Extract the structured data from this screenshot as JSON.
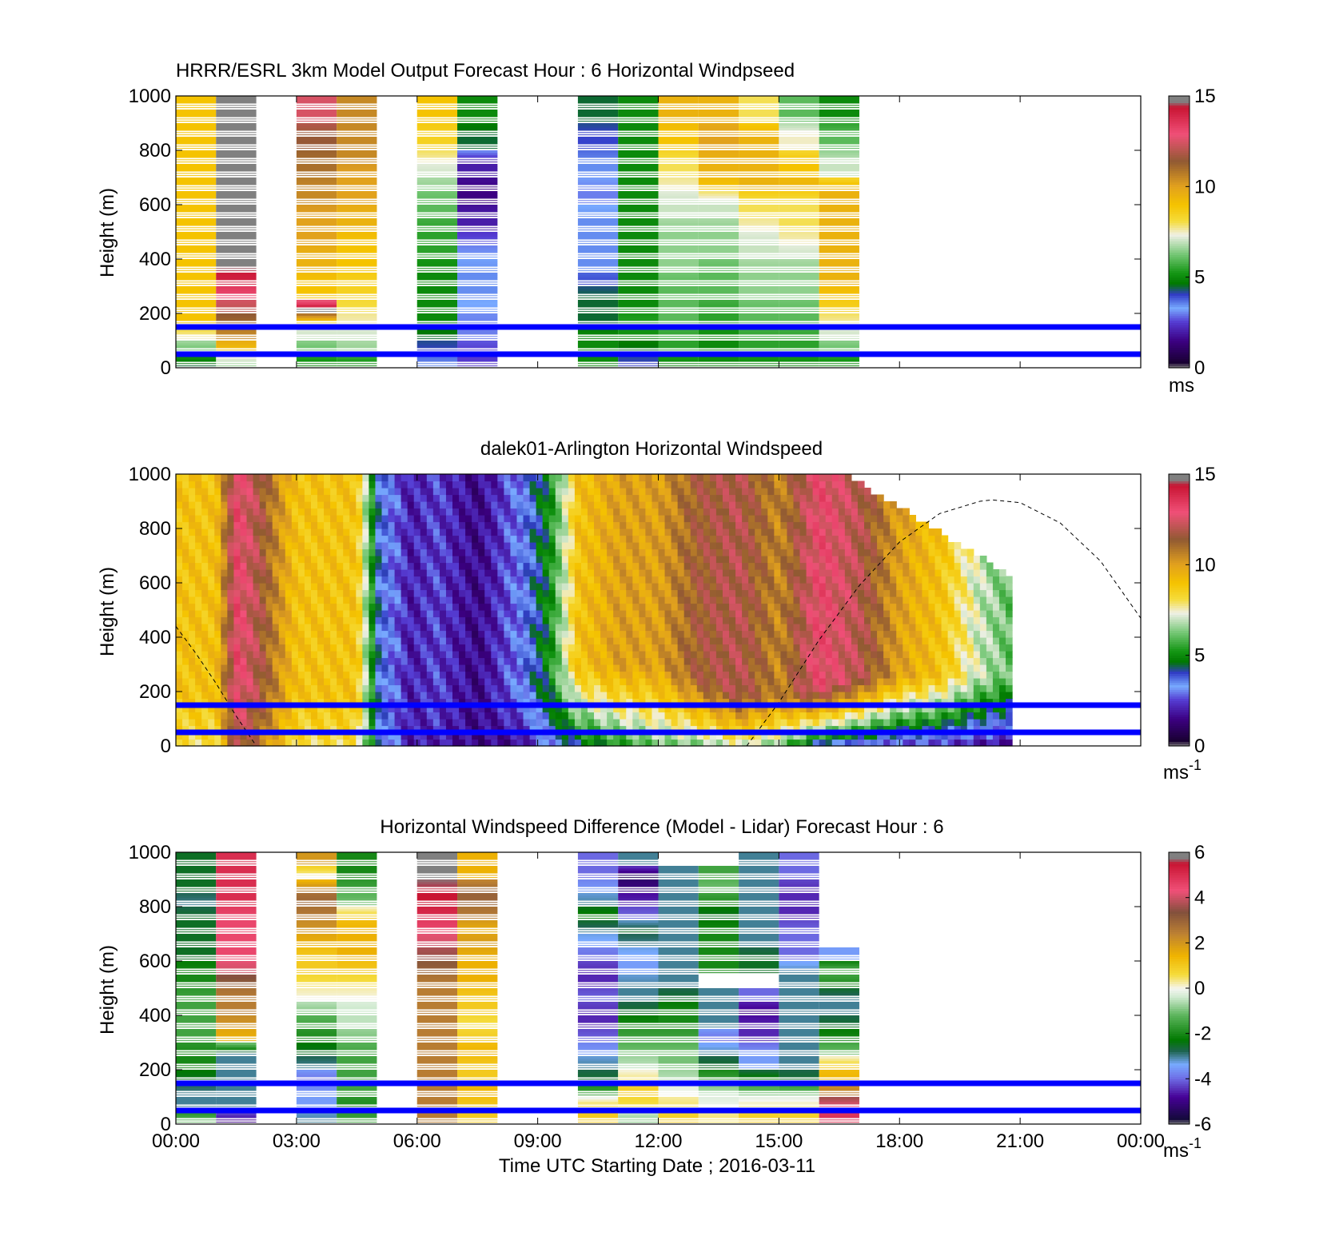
{
  "figure": {
    "xlabel": "Time UTC  Starting Date ; 2016-03-11",
    "x_ticks": [
      "00:00",
      "03:00",
      "06:00",
      "09:00",
      "12:00",
      "15:00",
      "18:00",
      "21:00",
      "00:00"
    ],
    "blue_line_heights_m": [
      50,
      150
    ],
    "colors": {
      "reference_lines": "#0000ff",
      "missing": "#ffffff",
      "axes": "#000000"
    }
  },
  "chart_data": [
    {
      "type": "heatmap",
      "title": "HRRR/ESRL 3km Model Output   Forecast Hour : 6 Horizontal Windpseed",
      "ylabel": "Height (m)",
      "xlim_hours": [
        0,
        24
      ],
      "ylim": [
        0,
        1000
      ],
      "y_ticks": [
        "0",
        "200",
        "400",
        "600",
        "800",
        "1000"
      ],
      "colorbar": {
        "min": 0,
        "max": 15,
        "ticks": [
          "0",
          "5",
          "10",
          "15"
        ],
        "unit": "ms"
      },
      "heights_m": [
        50,
        100,
        150,
        200,
        250,
        300,
        350,
        400,
        450,
        500,
        550,
        600,
        650,
        700,
        750,
        800,
        850,
        900,
        950,
        1000
      ],
      "columns": [
        {
          "start": 0,
          "end": 1,
          "values": [
            4.5,
            6.0,
            7.5,
            9.0,
            9.0,
            9.0,
            9.0,
            9.0,
            9.0,
            9.0,
            9.0,
            9.0,
            9.0,
            9.0,
            9.0,
            9.0,
            9.0,
            9.0,
            9.0,
            9.0
          ]
        },
        {
          "start": 1,
          "end": 2,
          "values": [
            6.5,
            9.0,
            10.5,
            11.0,
            12.0,
            13.0,
            14.0,
            14.5,
            15.5,
            15.5,
            15.5,
            15.5,
            15.5,
            15.5,
            15.5,
            15.5,
            15.5,
            15.5,
            15.5,
            15.5
          ]
        },
        {
          "start": 3,
          "end": 4,
          "values": [
            5.0,
            6.0,
            7.0,
            7.5,
            15.5,
            9.0,
            9.0,
            9.5,
            9.5,
            10.0,
            10.0,
            10.0,
            10.5,
            10.5,
            11.0,
            11.0,
            11.5,
            11.5,
            12.5,
            12.5
          ]
        },
        {
          "start": 4,
          "end": 5,
          "values": [
            5.0,
            6.5,
            7.0,
            7.5,
            8.0,
            8.5,
            8.5,
            9.0,
            9.0,
            9.0,
            9.5,
            9.5,
            10.0,
            10.0,
            10.0,
            10.5,
            10.5,
            10.5,
            10.5,
            10.5
          ]
        },
        {
          "start": 6,
          "end": 7,
          "values": [
            3.5,
            4.0,
            4.5,
            5.0,
            5.0,
            5.0,
            5.0,
            5.0,
            5.5,
            5.5,
            5.5,
            6.0,
            6.0,
            6.5,
            7.0,
            7.5,
            8.5,
            8.5,
            9.0,
            9.0
          ]
        },
        {
          "start": 7,
          "end": 8,
          "values": [
            2.5,
            2.5,
            3.0,
            3.0,
            3.2,
            3.5,
            3.5,
            3.5,
            3.2,
            2.8,
            2.0,
            2.0,
            1.5,
            1.5,
            2.0,
            2.0,
            4.5,
            4.5,
            5.0,
            5.0
          ]
        },
        {
          "start": 10,
          "end": 11,
          "values": [
            5.0,
            5.0,
            5.0,
            4.5,
            4.5,
            4.5,
            4.0,
            3.5,
            3.5,
            3.5,
            3.5,
            3.5,
            3.0,
            3.0,
            3.5,
            3.5,
            4.0,
            4.0,
            4.5,
            4.5
          ]
        },
        {
          "start": 11,
          "end": 12,
          "values": [
            4.0,
            4.5,
            5.0,
            5.5,
            5.0,
            5.0,
            5.0,
            5.0,
            5.0,
            5.0,
            5.0,
            5.0,
            5.0,
            5.0,
            5.0,
            5.0,
            5.0,
            5.0,
            5.0,
            5.0
          ]
        },
        {
          "start": 12,
          "end": 13,
          "values": [
            5.0,
            5.5,
            5.5,
            6.0,
            6.0,
            6.0,
            6.0,
            6.5,
            6.5,
            6.5,
            6.5,
            7.0,
            7.0,
            7.5,
            8.0,
            8.0,
            9.0,
            9.0,
            9.5,
            9.5
          ]
        },
        {
          "start": 13,
          "end": 14,
          "values": [
            5.0,
            5.0,
            5.0,
            5.5,
            5.5,
            6.0,
            6.0,
            6.0,
            6.5,
            6.5,
            6.5,
            7.0,
            7.0,
            9.0,
            9.5,
            9.5,
            10.0,
            10.0,
            9.5,
            9.5
          ]
        },
        {
          "start": 14,
          "end": 15,
          "values": [
            5.0,
            5.5,
            5.5,
            6.0,
            6.0,
            6.5,
            6.5,
            6.5,
            7.0,
            7.0,
            7.5,
            8.0,
            8.0,
            9.5,
            9.5,
            9.5,
            9.5,
            9.5,
            8.0,
            8.0
          ]
        },
        {
          "start": 15,
          "end": 16,
          "values": [
            5.0,
            5.5,
            5.5,
            6.0,
            6.0,
            6.5,
            6.5,
            6.5,
            7.0,
            7.5,
            8.0,
            8.0,
            8.0,
            9.5,
            9.0,
            9.0,
            7.5,
            7.5,
            6.0,
            6.0
          ]
        },
        {
          "start": 16,
          "end": 17,
          "values": [
            5.0,
            6.0,
            7.0,
            7.5,
            8.5,
            9.0,
            9.5,
            9.5,
            9.5,
            9.5,
            9.5,
            9.5,
            9.5,
            9.5,
            7.0,
            7.0,
            6.0,
            6.0,
            5.0,
            5.0
          ]
        }
      ]
    },
    {
      "type": "heatmap",
      "title": "dalek01-Arlington  Horizontal Windspeed",
      "ylabel": "Height (m)",
      "xlim_hours": [
        0,
        24
      ],
      "ylim": [
        0,
        1000
      ],
      "y_ticks": [
        "0",
        "200",
        "400",
        "600",
        "800",
        "1000"
      ],
      "colorbar": {
        "min": 0,
        "max": 15,
        "ticks": [
          "0",
          "5",
          "10",
          "15"
        ],
        "unit": "ms",
        "unit_exp": "-1"
      },
      "data_extent_hours": [
        0,
        20.8
      ],
      "time_knots": [
        0,
        1,
        1.5,
        2,
        3,
        4.5,
        5,
        5.8,
        6.5,
        7.5,
        8.5,
        9.3,
        10,
        11,
        12,
        13,
        14,
        15,
        16,
        17,
        18,
        19,
        20,
        20.8
      ],
      "upper_speed": [
        9,
        9,
        13,
        12,
        9,
        9,
        4,
        2,
        2.5,
        1.5,
        3,
        5,
        9,
        10,
        10,
        11.5,
        12,
        10.5,
        13,
        12,
        10,
        9,
        7,
        6
      ],
      "surface_speed": [
        8,
        8,
        12,
        11,
        8,
        8,
        4,
        2,
        2,
        1.5,
        1.5,
        3,
        4,
        5,
        6,
        6,
        7,
        6,
        3,
        2.5,
        2,
        2,
        1.5,
        1.5
      ],
      "mix_height_m": [
        200,
        200,
        220,
        220,
        200,
        180,
        150,
        150,
        150,
        160,
        200,
        250,
        300,
        300,
        300,
        250,
        200,
        180,
        220,
        250,
        260,
        260,
        260,
        260
      ],
      "solar_curve": {
        "times_hours": [
          0,
          0.5,
          1,
          1.5,
          2,
          14.2,
          15,
          16,
          17,
          18,
          19,
          20,
          20.3,
          21,
          22,
          23,
          24
        ],
        "heights_m": [
          440,
          340,
          230,
          110,
          0,
          0,
          160,
          390,
          590,
          750,
          855,
          900,
          905,
          895,
          820,
          680,
          470
        ]
      }
    },
    {
      "type": "heatmap",
      "title": "Horizontal Windspeed Difference (Model - Lidar) Forecast Hour : 6",
      "ylabel": "Height (m)",
      "xlim_hours": [
        0,
        24
      ],
      "ylim": [
        0,
        1000
      ],
      "y_ticks": [
        "0",
        "200",
        "400",
        "600",
        "800",
        "1000"
      ],
      "colorbar": {
        "min": -6,
        "max": 6,
        "ticks": [
          "-6",
          "-4",
          "-2",
          "0",
          "2",
          "4",
          "6"
        ],
        "unit": "ms",
        "unit_exp": "-1"
      },
      "heights_m": [
        50,
        100,
        150,
        200,
        250,
        300,
        350,
        400,
        450,
        500,
        550,
        600,
        650,
        700,
        750,
        800,
        850,
        900,
        950,
        1000
      ],
      "columns": [
        {
          "start": 0,
          "end": 1,
          "values": [
            -1.0,
            -3.0,
            -3.0,
            -2.5,
            -2.0,
            -2.0,
            -1.5,
            -1.5,
            -1.5,
            -1.5,
            -2.0,
            -2.0,
            -2.5,
            -2.5,
            -2.5,
            -2.5,
            -3.0,
            -2.5,
            -2.5,
            -2.5
          ]
        },
        {
          "start": 1,
          "end": 2,
          "values": [
            -5.0,
            -3.0,
            -3.0,
            -3.0,
            -3.0,
            -3.0,
            1.5,
            2.0,
            2.5,
            2.5,
            3.0,
            4.0,
            4.5,
            4.5,
            4.5,
            4.5,
            5.0,
            5.0,
            5.0,
            5.0
          ]
        },
        {
          "start": 3,
          "end": 4,
          "values": [
            -3.0,
            -3.5,
            -3.5,
            -4.0,
            -3.0,
            -2.5,
            -2.0,
            -1.5,
            -1.0,
            0.0,
            0.5,
            1.0,
            1.0,
            1.5,
            2.0,
            2.5,
            3.0,
            2.5,
            0.0,
            2.0
          ]
        },
        {
          "start": 4,
          "end": 5,
          "values": [
            -1.5,
            -2.0,
            -1.5,
            -1.5,
            -1.5,
            -1.5,
            -1.0,
            -0.5,
            -0.5,
            0.0,
            0.5,
            1.0,
            1.5,
            1.5,
            1.5,
            1.0,
            -1.0,
            -1.5,
            -2.0,
            -2.0
          ]
        },
        {
          "start": 6,
          "end": 7,
          "values": [
            2.5,
            2.5,
            2.5,
            2.5,
            2.5,
            2.5,
            2.5,
            2.5,
            2.5,
            2.5,
            2.5,
            3.0,
            3.5,
            4.0,
            4.5,
            5.0,
            5.5,
            5.5,
            6.0,
            6.0
          ]
        },
        {
          "start": 7,
          "end": 8,
          "values": [
            1.0,
            1.0,
            1.5,
            1.0,
            1.0,
            1.5,
            1.0,
            0.5,
            1.0,
            1.0,
            1.5,
            1.5,
            1.5,
            2.0,
            1.5,
            2.5,
            3.0,
            3.0,
            1.5,
            1.5
          ]
        },
        {
          "start": 10,
          "end": 11,
          "values": [
            1.0,
            1.0,
            -1.5,
            -2.5,
            -3.0,
            -3.5,
            -4.0,
            -4.5,
            -4.5,
            -4.0,
            -4.5,
            -4.5,
            -4.0,
            -3.5,
            -3.0,
            -2.0,
            -3.0,
            -3.5,
            -4.0,
            -4.0
          ]
        },
        {
          "start": 11,
          "end": 12,
          "values": [
            -1.0,
            0.5,
            1.0,
            0.5,
            -0.5,
            -1.0,
            -1.5,
            -2.0,
            -2.5,
            -3.0,
            -3.0,
            -3.5,
            -3.5,
            -3.0,
            -2.5,
            -4.0,
            -4.5,
            -5.0,
            -5.5,
            -3.0
          ]
        },
        {
          "start": 12,
          "end": 13,
          "values": [
            1.0,
            0.5,
            0.0,
            -0.5,
            -1.0,
            -1.0,
            -1.5,
            -2.0,
            -2.0,
            -2.5,
            -3.0,
            -3.0,
            -3.0,
            -3.0,
            -3.0,
            -3.0,
            -3.0,
            -3.0,
            -3.0,
            null
          ]
        },
        {
          "start": 13,
          "end": 14,
          "values": [
            0.5,
            0.0,
            -0.5,
            -1.5,
            -2.5,
            -3.0,
            -4.0,
            -3.0,
            -3.0,
            -3.0,
            null,
            -2.0,
            -2.0,
            -2.0,
            -2.0,
            -2.5,
            -2.0,
            -1.0,
            -1.5,
            null
          ]
        },
        {
          "start": 14,
          "end": 15,
          "values": [
            1.0,
            0.5,
            -1.0,
            -2.0,
            -3.5,
            -3.5,
            -4.5,
            -4.5,
            -5.0,
            -4.0,
            null,
            -2.5,
            -2.5,
            -3.0,
            -3.0,
            -3.0,
            -3.0,
            -3.0,
            -3.0,
            -3.0
          ]
        },
        {
          "start": 15,
          "end": 16,
          "values": [
            1.0,
            0.5,
            -1.0,
            -2.5,
            -3.0,
            -3.0,
            -3.0,
            -3.0,
            -3.0,
            -3.0,
            -3.0,
            -3.0,
            -4.0,
            -4.0,
            -4.0,
            -4.5,
            -4.5,
            -4.5,
            -4.0,
            -4.0
          ]
        },
        {
          "start": 16,
          "end": 17,
          "values": [
            5.0,
            4.5,
            2.5,
            1.5,
            1.0,
            -1.0,
            -2.0,
            -2.5,
            -3.0,
            -3.0,
            -2.0,
            -1.0,
            -3.5,
            null,
            null,
            null,
            null,
            null,
            null,
            null
          ]
        }
      ]
    }
  ]
}
